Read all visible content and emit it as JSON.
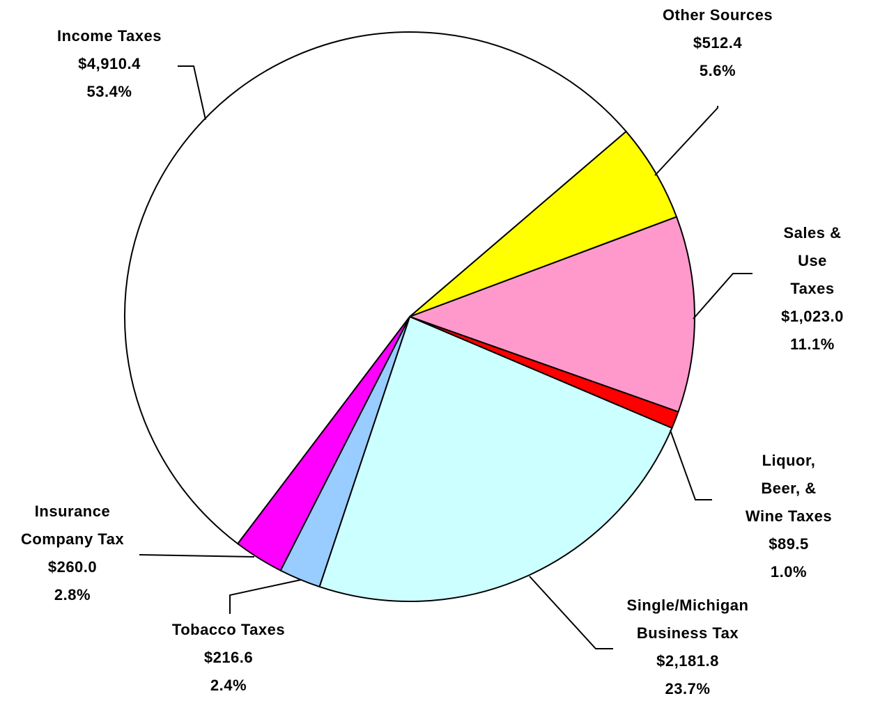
{
  "chart_data": {
    "type": "pie",
    "categories": [
      "Other Sources",
      "Sales & Use\nTaxes",
      "Liquor, Beer, &\nWine Taxes",
      "Single/Michigan\nBusiness Tax",
      "Tobacco Taxes",
      "Insurance\nCompany Tax",
      "Income Taxes"
    ],
    "values": [
      512.4,
      1023.0,
      89.5,
      2181.8,
      216.6,
      260.0,
      4910.4
    ],
    "value_labels": [
      "$512.4",
      "$1,023.0",
      "$89.5",
      "$2,181.8",
      "$216.6",
      "$260.0",
      "$4,910.4"
    ],
    "percents": [
      5.6,
      11.1,
      1.0,
      23.7,
      2.4,
      2.8,
      53.4
    ],
    "percent_labels": [
      "5.6%",
      "11.1%",
      "1.0%",
      "23.7%",
      "2.4%",
      "2.8%",
      "53.4%"
    ],
    "colors": [
      "#ffff00",
      "#ff99cc",
      "#ff0000",
      "#ccffff",
      "#99ccff",
      "#ff00ff",
      "#ffffff"
    ]
  }
}
